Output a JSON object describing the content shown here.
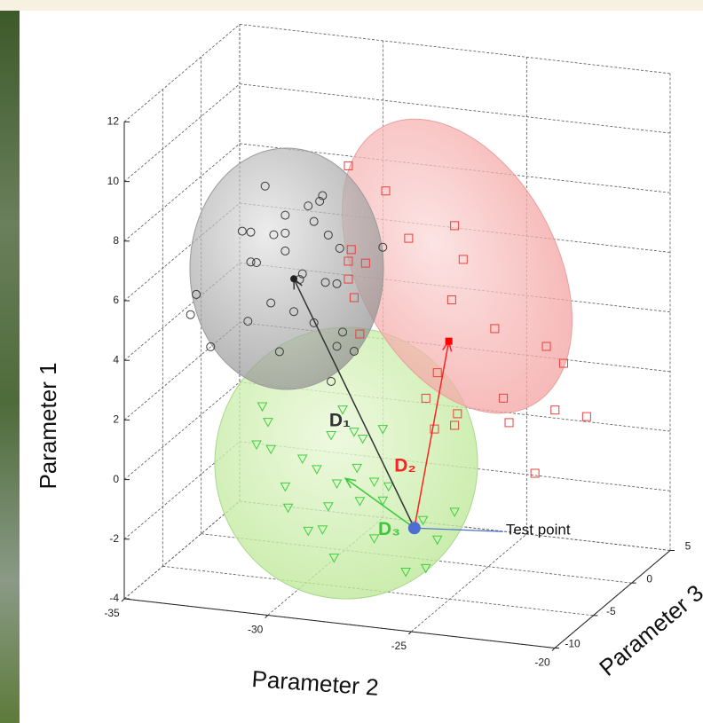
{
  "chart_data": {
    "type": "scatter3d",
    "xlabel": "Parameter 2",
    "ylabel": "Parameter 3",
    "zlabel": "Parameter 1",
    "xlim": [
      -35,
      -20
    ],
    "xticks": [
      -35,
      -30,
      -25,
      -20
    ],
    "ylim": [
      -10,
      5
    ],
    "yticks": [
      -10,
      -5,
      0,
      5
    ],
    "zlim": [
      -4,
      12
    ],
    "zticks": [
      -4,
      -2,
      0,
      2,
      4,
      6,
      8,
      10,
      12
    ],
    "grid": true,
    "series": [
      {
        "marker": "circle",
        "color": "#3a3a3a",
        "x": [
          -31.7,
          -30.2,
          -29.8,
          -29.7,
          -31.0,
          -30.0,
          -29.5,
          -29.1,
          -27.6,
          -32.5,
          -32.2,
          -31.4,
          -31.0,
          -31.0,
          -32.2,
          -32.0,
          -30.4,
          -30.5,
          -29.6,
          -34.3,
          -34.1,
          -33.6,
          -32.3,
          -31.5,
          -30.7,
          -30.0,
          -29.0,
          -29.2,
          -28.6,
          -31.2,
          -29.4,
          -29.2
        ],
        "y": [
          -4,
          -4,
          -4,
          -4,
          -4,
          -4,
          -4,
          -4,
          -4,
          -4,
          -4,
          -4,
          -4,
          -4,
          -4,
          -4,
          -4,
          -4,
          -4,
          -4,
          -4,
          -4,
          -4,
          -4,
          -4,
          -4,
          -4,
          -4,
          -4,
          -4,
          -4,
          -4
        ],
        "z": [
          8.9,
          8.4,
          8.6,
          8.8,
          8.0,
          7.9,
          7.5,
          7.1,
          7.3,
          7.3,
          7.3,
          7.3,
          6.8,
          7.4,
          6.3,
          6.3,
          6.1,
          5.9,
          5.9,
          4.3,
          5.0,
          3.3,
          4.3,
          5.0,
          4.8,
          4.5,
          4.3,
          3.8,
          3.7,
          3.4,
          2.6,
          5.9
        ]
      },
      {
        "marker": "square",
        "color": "#e8403c",
        "x": [
          -28.8,
          -27.5,
          -25.1,
          -26.7,
          -24.8,
          -28.7,
          -28.2,
          -28.8,
          -28.8,
          -28.6,
          -25.2,
          -23.7,
          -21.9,
          -21.3,
          -28.4,
          -25.7,
          -23.4,
          -21.6,
          -20.5,
          -26.1,
          -25.0,
          -23.2,
          -25.1,
          -25.8,
          -22.3
        ],
        "y": [
          -4,
          -4,
          -4,
          -4,
          -4,
          -4,
          -4,
          -4,
          -4,
          -4,
          -4,
          -4,
          -4,
          -4,
          -4,
          -4,
          -4,
          -4,
          -4,
          -4,
          -4,
          -4,
          -4,
          -4,
          -4
        ],
        "z": [
          9.9,
          9.2,
          8.3,
          7.7,
          7.2,
          7.1,
          6.7,
          6.7,
          6.1,
          5.5,
          5.8,
          5.0,
          4.6,
          4.1,
          4.3,
          3.3,
          2.7,
          2.5,
          2.4,
          2.4,
          2.0,
          1.9,
          1.6,
          1.4,
          0.3
        ]
      },
      {
        "marker": "triangle",
        "color": "#3fcf3f",
        "x": [
          -31.8,
          -31.6,
          -29.0,
          -28.6,
          -29.4,
          -28.3,
          -27.6,
          -32.0,
          -31.5,
          -30.4,
          -29.9,
          -28.5,
          -27.9,
          -27.4,
          -25.1,
          -29.2,
          -31.0,
          -27.6,
          -28.4,
          -26.2,
          -29.5,
          -25.7,
          -30.9,
          -30.2,
          -29.7,
          -27.9,
          -26.1,
          -26.8,
          -29.3
        ],
        "y": [
          -4,
          -4,
          -4,
          -4,
          -4,
          -4,
          -4,
          -4,
          -4,
          -4,
          -4,
          -4,
          -4,
          -4,
          -4,
          -4,
          -4,
          -4,
          -4,
          -4,
          -4,
          -4,
          -4,
          -4,
          -4,
          -4,
          -4,
          -4,
          -4
        ],
        "z": [
          1.5,
          1.0,
          1.7,
          1.0,
          0.8,
          0.8,
          1.2,
          0.2,
          0.1,
          -0.1,
          -0.4,
          -0.2,
          -0.6,
          -0.7,
          -1.3,
          -0.8,
          -1.1,
          -1.2,
          -1.3,
          -1.7,
          -1.6,
          -2.3,
          -1.8,
          -2.5,
          -2.4,
          -2.5,
          -3.3,
          -3.5,
          -3.3
        ]
      }
    ],
    "centroids": [
      {
        "marker": "dot",
        "color": "#222222",
        "x": -30.7,
        "y": -4,
        "z": 5.9
      },
      {
        "marker": "filled-square",
        "color": "#ff0000",
        "x": -25.3,
        "y": -4,
        "z": 4.4
      }
    ],
    "test_point": {
      "label": "Test point",
      "color": "#4f6fd0",
      "x": -26.5,
      "y": -4,
      "z": -2.0
    },
    "arrows": [
      {
        "label": "D₁",
        "color": "#333333",
        "to": [
          -30.7,
          -4,
          5.9
        ]
      },
      {
        "label": "D₂",
        "color": "#ff2020",
        "to": [
          -25.3,
          -4,
          4.4
        ]
      },
      {
        "label": "D₃",
        "color": "#3cc83c",
        "to": [
          -28.9,
          -4,
          -0.6
        ]
      }
    ]
  }
}
